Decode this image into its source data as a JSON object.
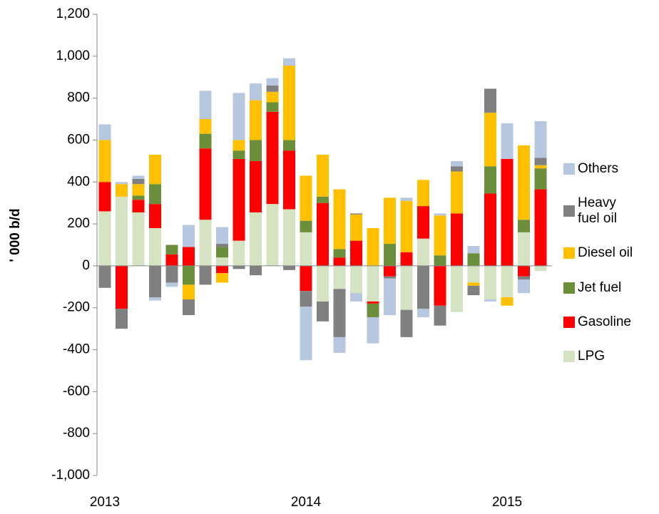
{
  "chart_data": {
    "type": "stacked_bar",
    "y_label": "' 000 b/d",
    "categories": [
      "2013",
      null,
      null,
      null,
      null,
      null,
      null,
      null,
      null,
      null,
      null,
      null,
      "2014",
      null,
      null,
      null,
      null,
      null,
      null,
      null,
      null,
      null,
      null,
      null,
      "2015",
      null,
      null
    ],
    "series": [
      {
        "name": "LPG",
        "color": "#d5e3c3",
        "values": [
          260,
          330,
          255,
          180,
          0,
          0,
          220,
          40,
          120,
          255,
          295,
          270,
          160,
          -170,
          -110,
          -130,
          -170,
          0,
          -210,
          130,
          0,
          -220,
          -80,
          -160,
          -150,
          160,
          -25
        ]
      },
      {
        "name": "Gasoline",
        "color": "#ff0000",
        "values": [
          140,
          -205,
          60,
          115,
          55,
          90,
          340,
          -35,
          390,
          245,
          440,
          280,
          -120,
          300,
          40,
          120,
          -10,
          -50,
          65,
          155,
          -190,
          250,
          0,
          345,
          510,
          -50,
          365
        ]
      },
      {
        "name": "Jet fuel",
        "color": "#6a8e3a",
        "values": [
          0,
          0,
          20,
          95,
          45,
          -90,
          70,
          50,
          40,
          100,
          45,
          50,
          55,
          30,
          40,
          0,
          -65,
          105,
          0,
          0,
          50,
          0,
          60,
          130,
          0,
          60,
          100
        ]
      },
      {
        "name": "Diesel oil",
        "color": "#ffc000",
        "values": [
          200,
          60,
          55,
          140,
          0,
          -70,
          70,
          -45,
          50,
          190,
          50,
          355,
          215,
          200,
          285,
          125,
          180,
          220,
          245,
          125,
          190,
          200,
          -15,
          255,
          -40,
          355,
          15
        ]
      },
      {
        "name": "Heavy fuel oil",
        "color": "#808080",
        "values": [
          -105,
          -95,
          25,
          -150,
          -80,
          -75,
          -90,
          15,
          -15,
          -45,
          30,
          -20,
          -75,
          -95,
          -230,
          5,
          0,
          -10,
          -130,
          -205,
          -95,
          25,
          -45,
          115,
          0,
          -15,
          35
        ]
      },
      {
        "name": "Others",
        "color": "#b7c7df",
        "values": [
          75,
          10,
          15,
          -15,
          -20,
          105,
          135,
          80,
          225,
          80,
          35,
          35,
          -255,
          0,
          -75,
          -40,
          -125,
          -175,
          15,
          -40,
          10,
          25,
          35,
          -10,
          170,
          -65,
          175
        ]
      }
    ],
    "ylim": [
      -1000,
      1200
    ],
    "yticks": [
      {
        "value": 1200,
        "label": "1,200"
      },
      {
        "value": 1000,
        "label": "1,000"
      },
      800,
      600,
      400,
      200,
      0,
      -200,
      -400,
      -600,
      -800,
      {
        "value": -1000,
        "label": "-1,000"
      }
    ],
    "negative_tick_color": "#e00000"
  }
}
